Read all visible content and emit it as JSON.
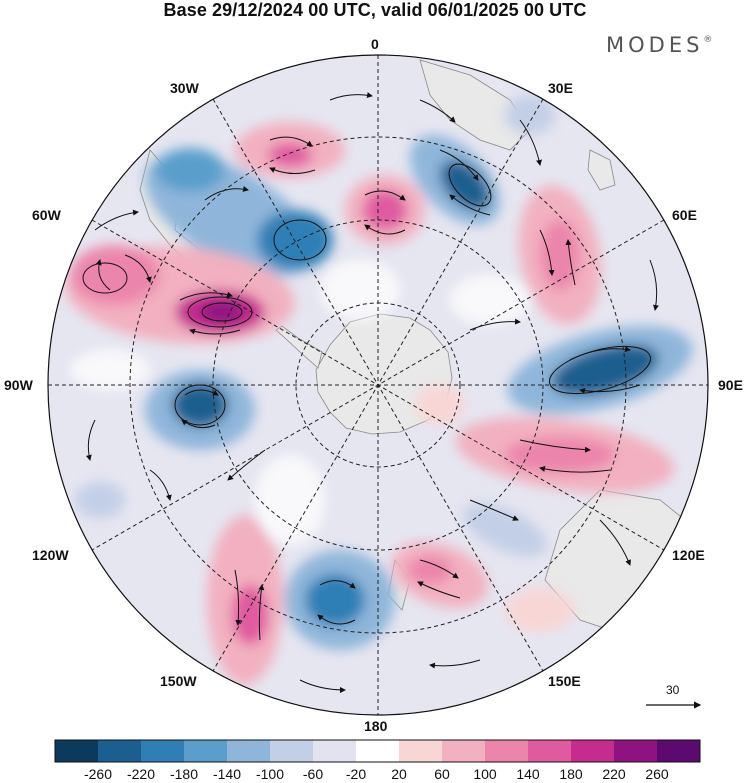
{
  "title": "Base 29/12/2024 00 UTC, valid 06/01/2025 00 UTC",
  "brand": "MODES",
  "brand_mark": "®",
  "longitude_labels": [
    "0",
    "30E",
    "60E",
    "90E",
    "120E",
    "150E",
    "180",
    "150W",
    "120W",
    "90W",
    "60W",
    "30W"
  ],
  "reference_vector_value": "30",
  "colorbar": {
    "ticks": [
      "-260",
      "-220",
      "-180",
      "-140",
      "-100",
      "-60",
      "-20",
      "20",
      "60",
      "100",
      "140",
      "180",
      "220",
      "260"
    ],
    "colors": [
      "#0b3a5c",
      "#1a5f8f",
      "#2f7fb5",
      "#5a9fcc",
      "#8fb6da",
      "#c3cfe6",
      "#e3e3f0",
      "#ffffff",
      "#f8d6d6",
      "#f2b0c0",
      "#ec85ab",
      "#e05aa0",
      "#c52c8e",
      "#8e1380",
      "#5c0a70"
    ]
  },
  "colors": {
    "land": "#e8e8e8",
    "coast": "#888888",
    "graticule": "#222222",
    "vector": "#111111"
  }
}
